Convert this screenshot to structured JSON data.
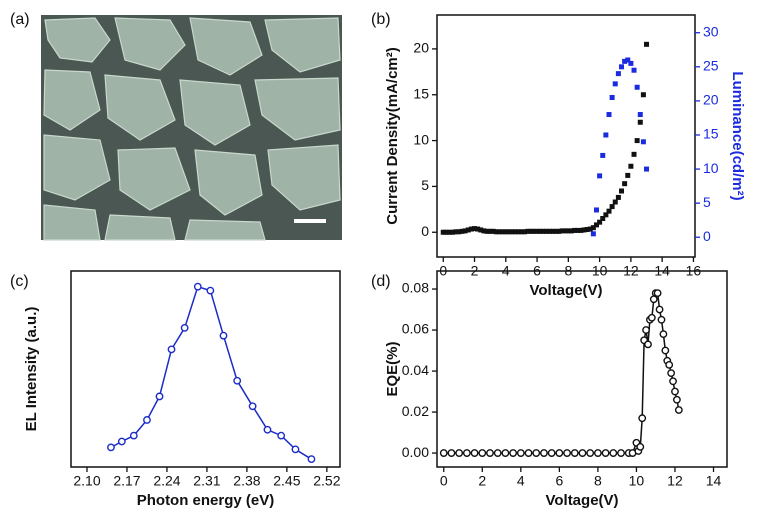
{
  "image_panel": {
    "label": "(a)"
  },
  "chart_data": [
    {
      "label": "(b)",
      "type": "scatter",
      "marker": "square",
      "xlabel": "Voltage(V)",
      "ylabel": "Current Density(mA/cm²)",
      "y2label": "Luminance(cd/m²)",
      "y2color": "#1a2be0",
      "xlim": [
        -0.4,
        16.1
      ],
      "xticks": [
        0,
        2,
        4,
        6,
        8,
        10,
        12,
        14,
        16
      ],
      "ylim": [
        -2.7,
        23.7
      ],
      "yticks": [
        0,
        5,
        10,
        15,
        20
      ],
      "y2lim": [
        -2.9,
        32.6
      ],
      "y2ticks": [
        0,
        5,
        10,
        15,
        20,
        25,
        30
      ],
      "x": [
        0,
        0.2,
        0.4,
        0.6,
        0.8,
        1.0,
        1.2,
        1.4,
        1.6,
        1.8,
        2.0,
        2.2,
        2.4,
        2.6,
        2.8,
        3.0,
        3.2,
        3.4,
        3.6,
        3.8,
        4.0,
        4.2,
        4.4,
        4.6,
        4.8,
        5.0,
        5.2,
        5.4,
        5.6,
        5.8,
        6.0,
        6.2,
        6.4,
        6.6,
        6.8,
        7.0,
        7.2,
        7.4,
        7.6,
        7.8,
        8.0,
        8.2,
        8.4,
        8.6,
        8.8,
        9.0,
        9.2,
        9.4,
        9.6,
        9.8,
        10.0,
        10.2,
        10.4,
        10.6,
        10.8,
        11.0,
        11.2,
        11.4,
        11.6,
        11.8,
        12.0,
        12.2,
        12.4,
        12.6,
        12.8,
        13.0
      ],
      "series": [
        {
          "color": "#111111",
          "values": [
            0,
            0,
            0,
            0,
            0.05,
            0.05,
            0.1,
            0.15,
            0.25,
            0.35,
            0.4,
            0.35,
            0.25,
            0.15,
            0.1,
            0.1,
            0.1,
            0.05,
            0.05,
            0.05,
            0.05,
            0.05,
            0.05,
            0.05,
            0.05,
            0.05,
            0.05,
            0.1,
            0.1,
            0.1,
            0.1,
            0.1,
            0.1,
            0.1,
            0.1,
            0.1,
            0.1,
            0.1,
            0.15,
            0.15,
            0.15,
            0.15,
            0.2,
            0.2,
            0.2,
            0.25,
            0.3,
            0.35,
            0.5,
            0.8,
            1.1,
            1.5,
            1.9,
            2.3,
            2.8,
            3.3,
            3.8,
            4.5,
            5.3,
            6.2,
            7.2,
            8.5,
            10,
            12,
            15,
            20.5
          ]
        },
        {
          "color": "#1a2be0",
          "axis": "y2",
          "values": [
            null,
            null,
            null,
            null,
            null,
            null,
            null,
            null,
            null,
            null,
            null,
            null,
            null,
            null,
            null,
            null,
            null,
            null,
            null,
            null,
            null,
            null,
            null,
            null,
            null,
            null,
            null,
            null,
            null,
            null,
            null,
            null,
            null,
            null,
            null,
            null,
            null,
            null,
            null,
            null,
            null,
            null,
            null,
            null,
            null,
            null,
            null,
            null,
            0.5,
            4,
            9,
            12,
            15,
            18,
            20.5,
            22.5,
            24,
            25,
            25.8,
            26,
            25.5,
            24.5,
            22,
            18,
            14,
            10
          ]
        }
      ]
    },
    {
      "label": "(c)",
      "type": "line",
      "marker": "circle",
      "xlabel": "Photon energy (eV)",
      "ylabel": "EL Intensity (a.u.)",
      "xlim": [
        2.072,
        2.543
      ],
      "xticks": [
        {
          "value": 2.1,
          "label": "2.10"
        },
        2.17,
        2.24,
        2.31,
        2.38,
        2.45,
        2.52
      ],
      "ylim": [
        0,
        1
      ],
      "x": [
        2.142,
        2.161,
        2.182,
        2.205,
        2.227,
        2.248,
        2.271,
        2.294,
        2.316,
        2.339,
        2.363,
        2.39,
        2.416,
        2.44,
        2.465,
        2.493
      ],
      "series": [
        {
          "color": "#1a2bc8",
          "values": [
            0.1,
            0.13,
            0.16,
            0.24,
            0.36,
            0.6,
            0.71,
            0.92,
            0.9,
            0.67,
            0.44,
            0.31,
            0.19,
            0.16,
            0.09,
            0.04
          ]
        }
      ]
    },
    {
      "label": "(d)",
      "type": "line",
      "marker": "circle",
      "xlabel": "Voltage(V)",
      "ylabel": "EQE(%)",
      "xlim": [
        -0.35,
        14.7
      ],
      "xticks": [
        0,
        2,
        4,
        6,
        8,
        10,
        12,
        14
      ],
      "ylim": [
        -0.0068,
        0.0888
      ],
      "yticks": [
        {
          "value": 0,
          "label": "0.00"
        },
        0.02,
        0.04,
        0.06,
        0.08
      ],
      "x": [
        0,
        0.4,
        0.8,
        1.2,
        1.6,
        2.0,
        2.4,
        2.8,
        3.2,
        3.6,
        4.0,
        4.4,
        4.8,
        5.2,
        5.6,
        6.0,
        6.4,
        6.8,
        7.2,
        7.6,
        8.0,
        8.4,
        8.8,
        9.2,
        9.6,
        9.8,
        10.0,
        10.1,
        10.2,
        10.3,
        10.4,
        10.5,
        10.6,
        10.7,
        10.8,
        10.9,
        11.0,
        11.1,
        11.2,
        11.3,
        11.4,
        11.5,
        11.6,
        11.7,
        11.8,
        11.9,
        12.0,
        12.1,
        12.2
      ],
      "series": [
        {
          "color": "#111111",
          "values": [
            0,
            0,
            0,
            0,
            0,
            0,
            0,
            0,
            0,
            0,
            0,
            0,
            0,
            0,
            0,
            0,
            0,
            0,
            0,
            0,
            0,
            0,
            0,
            0,
            0,
            0,
            0.005,
            0.001,
            0.003,
            0.017,
            0.055,
            0.06,
            0.053,
            0.065,
            0.066,
            0.075,
            0.078,
            0.078,
            0.07,
            0.065,
            0.058,
            0.05,
            0.045,
            0.043,
            0.039,
            0.035,
            0.03,
            0.026,
            0.021
          ]
        }
      ]
    }
  ]
}
